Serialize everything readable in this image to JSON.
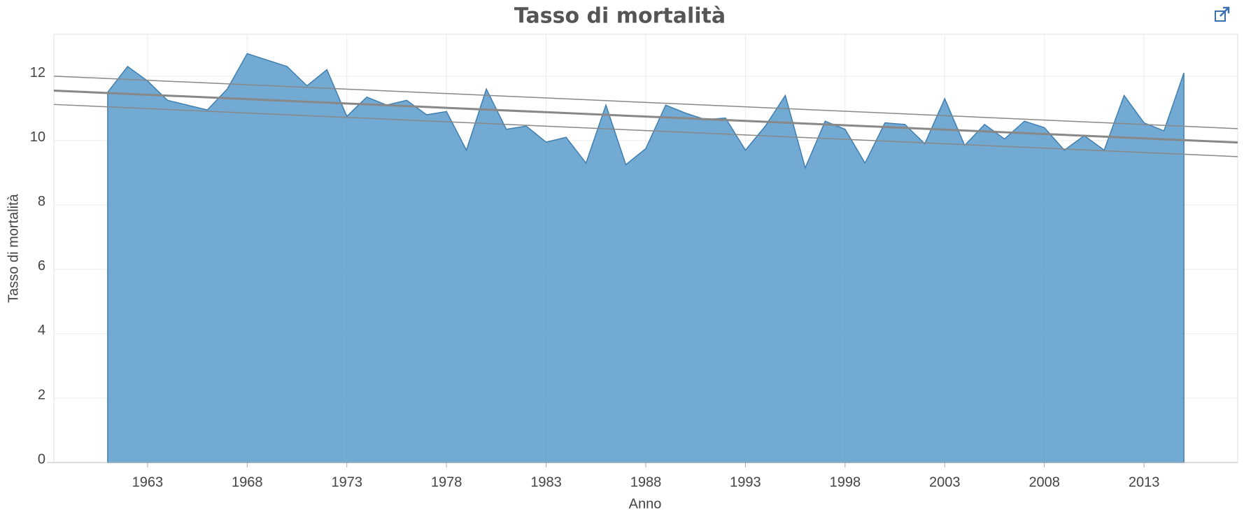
{
  "chart_data": {
    "type": "area",
    "title": "Tasso di mortalità",
    "x_label": "Anno",
    "y_label": "Tasso di mortalità",
    "x": [
      1961,
      1962,
      1963,
      1964,
      1965,
      1966,
      1967,
      1968,
      1969,
      1970,
      1971,
      1972,
      1973,
      1974,
      1975,
      1976,
      1977,
      1978,
      1979,
      1980,
      1981,
      1982,
      1983,
      1984,
      1985,
      1986,
      1987,
      1988,
      1989,
      1990,
      1991,
      1992,
      1993,
      1994,
      1995,
      1996,
      1997,
      1998,
      1999,
      2000,
      2001,
      2002,
      2003,
      2004,
      2005,
      2006,
      2007,
      2008,
      2009,
      2010,
      2011,
      2012,
      2013,
      2014,
      2015
    ],
    "series": [
      {
        "color": "#5b9bcb",
        "values": [
          11.5,
          12.3,
          11.85,
          11.25,
          11.1,
          10.95,
          11.6,
          12.7,
          12.5,
          12.3,
          11.7,
          12.2,
          10.75,
          11.35,
          11.1,
          11.25,
          10.8,
          10.9,
          9.7,
          11.6,
          10.35,
          10.45,
          9.95,
          10.1,
          9.3,
          11.1,
          9.25,
          9.75,
          11.1,
          10.85,
          10.65,
          10.7,
          9.7,
          10.45,
          11.4,
          9.15,
          10.6,
          10.35,
          9.3,
          10.55,
          10.5,
          9.9,
          11.3,
          9.85,
          10.5,
          10.05,
          10.6,
          10.4,
          9.7,
          10.15,
          9.7,
          11.4,
          10.55,
          10.3,
          12.1
        ]
      }
    ],
    "trend_lines": [
      {
        "x": [
          1958.3,
          2017.7
        ],
        "values": [
          11.55,
          9.94
        ],
        "color": "#888888",
        "width": 3
      },
      {
        "x": [
          1958.3,
          2017.7
        ],
        "values": [
          12.0,
          10.37
        ],
        "color": "#888888",
        "width": 1.5
      },
      {
        "x": [
          1958.3,
          2017.7
        ],
        "values": [
          11.12,
          9.5
        ],
        "color": "#888888",
        "width": 1.5
      }
    ],
    "xlim": [
      1958.3,
      2017.7
    ],
    "xticks": [
      1963,
      1968,
      1973,
      1978,
      1983,
      1988,
      1993,
      1998,
      2003,
      2008,
      2013
    ],
    "ylim": [
      0,
      13.3
    ],
    "yticks": [
      0,
      2,
      4,
      6,
      8,
      10,
      12
    ],
    "grid": true
  }
}
